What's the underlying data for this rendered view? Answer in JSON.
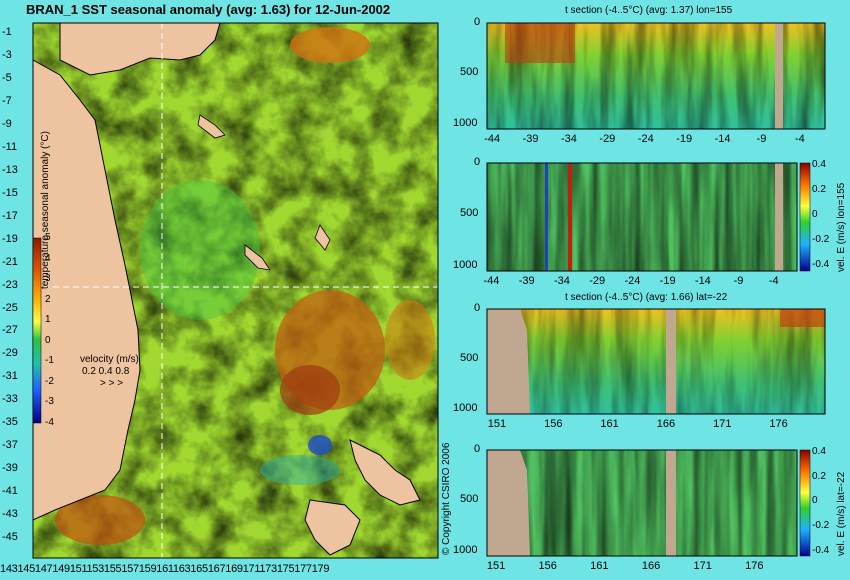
{
  "palette": {
    "background": "#6ee4e4",
    "land": "#eec3a0",
    "mask": "#c0a890"
  },
  "main_map": {
    "title": "BRAN_1 SST seasonal anomaly (avg: 1.63) for 12-Jun-2002",
    "lat_ticks": [
      "-1",
      "-3",
      "-5",
      "-7",
      "-9",
      "-11",
      "-13",
      "-15",
      "-17",
      "-19",
      "-21",
      "-23",
      "-25",
      "-27",
      "-29",
      "-31",
      "-33",
      "-35",
      "-37",
      "-39",
      "-41",
      "-43",
      "-45"
    ],
    "lon_ticks": [
      "143",
      "145",
      "147",
      "149",
      "151",
      "153",
      "155",
      "157",
      "159",
      "161",
      "163",
      "165",
      "167",
      "169",
      "171",
      "173",
      "175",
      "177",
      "179"
    ],
    "colorbar": {
      "label": "temperature seasonal anomaly (°C)",
      "ticks": [
        "5",
        "4",
        "3",
        "2",
        "1",
        "0",
        "-1",
        "-2",
        "-3",
        "-4"
      ]
    },
    "velocity_legend": {
      "title": "velocity (m/s)",
      "values": "0.2 0.4 0.8",
      "arrows": "> > >"
    },
    "copyright": "© Copyright CSIRO 2006"
  },
  "chart_data": [
    {
      "type": "heatmap",
      "title": "t section (-4..5°C) (avg: 1.37) lon=155",
      "x_ticks": [
        "-44",
        "-39",
        "-34",
        "-29",
        "-24",
        "-19",
        "-14",
        "-9",
        "-4"
      ],
      "y_ticks": [
        "0",
        "500",
        "1000"
      ],
      "ylim": [
        1000,
        0
      ],
      "xlim": [
        -45,
        -1
      ]
    },
    {
      "type": "heatmap",
      "title": "",
      "x_ticks": [
        "-44",
        "-39",
        "-34",
        "-29",
        "-24",
        "-19",
        "-14",
        "-9",
        "-4"
      ],
      "y_ticks": [
        "0",
        "500",
        "1000"
      ],
      "colorbar_label": "vel. E (m/s) lon=155",
      "colorbar_ticks": [
        "0.4",
        "0.2",
        "0",
        "-0.2",
        "-0.4"
      ]
    },
    {
      "type": "heatmap",
      "title": "t section (-4..5°C) (avg: 1.66) lat=-22",
      "x_ticks": [
        "151",
        "156",
        "161",
        "166",
        "171",
        "176"
      ],
      "y_ticks": [
        "0",
        "500",
        "1000"
      ]
    },
    {
      "type": "heatmap",
      "title": "",
      "x_ticks": [
        "151",
        "156",
        "161",
        "166",
        "171",
        "176"
      ],
      "y_ticks": [
        "0",
        "500",
        "1000"
      ],
      "colorbar_label": "vel. E (m/s) lat=-22",
      "colorbar_ticks": [
        "0.4",
        "0.2",
        "0",
        "-0.2",
        "-0.4"
      ]
    }
  ]
}
